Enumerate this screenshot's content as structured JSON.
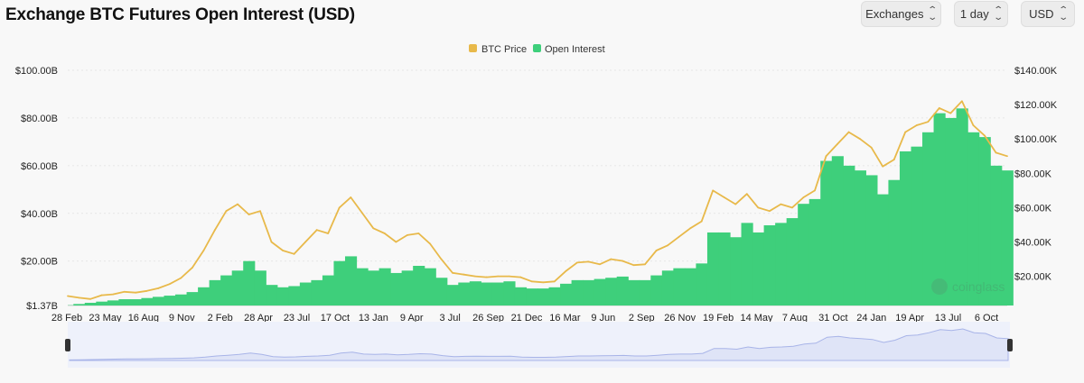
{
  "header": {
    "title": "Exchange BTC Futures Open Interest (USD)",
    "controls": [
      {
        "label": "Exchanges"
      },
      {
        "label": "1 day"
      },
      {
        "label": "USD"
      }
    ]
  },
  "watermark": "coinglass",
  "colors": {
    "price": "#e8b94a",
    "oi": "#3ecf7b",
    "navigator_fill": "#dfe4f7",
    "navigator_line": "#a8b4e8"
  },
  "chart_data": {
    "type": "area",
    "legend": [
      {
        "name": "BTC Price",
        "color": "#e8b94a"
      },
      {
        "name": "Open Interest",
        "color": "#3ecf7b"
      }
    ],
    "y_left": {
      "ticks": [
        "$1.37B",
        "$20.00B",
        "$40.00B",
        "$60.00B",
        "$80.00B",
        "$100.00B"
      ],
      "values": [
        1.37,
        20,
        40,
        60,
        80,
        100
      ],
      "range": [
        1.37,
        100
      ]
    },
    "y_right": {
      "ticks": [
        "$20.00K",
        "$40.00K",
        "$60.00K",
        "$80.00K",
        "$100.00K",
        "$120.00K",
        "$140.00K"
      ],
      "values": [
        20000,
        40000,
        60000,
        80000,
        100000,
        120000,
        140000
      ],
      "range": [
        3000,
        140000
      ]
    },
    "x_ticks": [
      "28 Feb",
      "23 May",
      "16 Aug",
      "9 Nov",
      "2 Feb",
      "28 Apr",
      "23 Jul",
      "17 Oct",
      "13 Jan",
      "9 Apr",
      "3 Jul",
      "26 Sep",
      "21 Dec",
      "16 Mar",
      "9 Jun",
      "2 Sep",
      "26 Nov",
      "19 Feb",
      "14 May",
      "7 Aug",
      "31 Oct",
      "24 Jan",
      "19 Apr",
      "13 Jul",
      "6 Oct"
    ],
    "series": [
      {
        "name": "BTC Price",
        "unit": "USD",
        "points": [
          [
            0,
            8500
          ],
          [
            1,
            7500
          ],
          [
            2,
            6800
          ],
          [
            3,
            9000
          ],
          [
            4,
            9500
          ],
          [
            5,
            11000
          ],
          [
            6,
            10500
          ],
          [
            7,
            11500
          ],
          [
            8,
            13000
          ],
          [
            9,
            15500
          ],
          [
            10,
            19000
          ],
          [
            11,
            25000
          ],
          [
            12,
            35000
          ],
          [
            13,
            47000
          ],
          [
            14,
            58000
          ],
          [
            15,
            62000
          ],
          [
            16,
            56000
          ],
          [
            17,
            58000
          ],
          [
            18,
            40000
          ],
          [
            19,
            35000
          ],
          [
            20,
            33000
          ],
          [
            21,
            40000
          ],
          [
            22,
            47000
          ],
          [
            23,
            45000
          ],
          [
            24,
            60000
          ],
          [
            25,
            66000
          ],
          [
            26,
            57000
          ],
          [
            27,
            48000
          ],
          [
            28,
            45000
          ],
          [
            29,
            40000
          ],
          [
            30,
            44000
          ],
          [
            31,
            45000
          ],
          [
            32,
            39000
          ],
          [
            33,
            30000
          ],
          [
            34,
            22000
          ],
          [
            35,
            21000
          ],
          [
            36,
            20000
          ],
          [
            37,
            19500
          ],
          [
            38,
            20000
          ],
          [
            39,
            20000
          ],
          [
            40,
            19500
          ],
          [
            41,
            17000
          ],
          [
            42,
            16500
          ],
          [
            43,
            17000
          ],
          [
            44,
            23000
          ],
          [
            45,
            28000
          ],
          [
            46,
            28500
          ],
          [
            47,
            27000
          ],
          [
            48,
            30000
          ],
          [
            49,
            29000
          ],
          [
            50,
            26500
          ],
          [
            51,
            27000
          ],
          [
            52,
            35000
          ],
          [
            53,
            38000
          ],
          [
            54,
            43000
          ],
          [
            55,
            48000
          ],
          [
            56,
            52000
          ],
          [
            57,
            70000
          ],
          [
            58,
            66000
          ],
          [
            59,
            62000
          ],
          [
            60,
            68000
          ],
          [
            61,
            60000
          ],
          [
            62,
            58000
          ],
          [
            63,
            62000
          ],
          [
            64,
            60000
          ],
          [
            65,
            66000
          ],
          [
            66,
            70000
          ],
          [
            67,
            90000
          ],
          [
            68,
            97000
          ],
          [
            69,
            104000
          ],
          [
            70,
            100000
          ],
          [
            71,
            95000
          ],
          [
            72,
            84000
          ],
          [
            73,
            88000
          ],
          [
            74,
            104000
          ],
          [
            75,
            108000
          ],
          [
            76,
            110000
          ],
          [
            77,
            118000
          ],
          [
            78,
            115000
          ],
          [
            79,
            122000
          ],
          [
            80,
            108000
          ],
          [
            81,
            102000
          ],
          [
            82,
            92000
          ],
          [
            83,
            90000
          ]
        ]
      },
      {
        "name": "Open Interest",
        "unit": "USD billions",
        "points": [
          [
            0,
            1.5
          ],
          [
            1,
            2
          ],
          [
            2,
            2.5
          ],
          [
            3,
            3
          ],
          [
            4,
            3.5
          ],
          [
            5,
            4
          ],
          [
            6,
            4
          ],
          [
            7,
            4.5
          ],
          [
            8,
            5
          ],
          [
            9,
            5.5
          ],
          [
            10,
            6
          ],
          [
            11,
            7
          ],
          [
            12,
            9
          ],
          [
            13,
            12
          ],
          [
            14,
            14
          ],
          [
            15,
            16
          ],
          [
            16,
            20
          ],
          [
            17,
            16
          ],
          [
            18,
            10
          ],
          [
            19,
            9
          ],
          [
            20,
            9.5
          ],
          [
            21,
            11
          ],
          [
            22,
            12
          ],
          [
            23,
            14
          ],
          [
            24,
            20
          ],
          [
            25,
            22
          ],
          [
            26,
            17
          ],
          [
            27,
            16
          ],
          [
            28,
            17
          ],
          [
            29,
            15
          ],
          [
            30,
            16
          ],
          [
            31,
            18
          ],
          [
            32,
            17
          ],
          [
            33,
            13
          ],
          [
            34,
            10
          ],
          [
            35,
            11
          ],
          [
            36,
            11.5
          ],
          [
            37,
            11
          ],
          [
            38,
            11
          ],
          [
            39,
            11.5
          ],
          [
            40,
            9
          ],
          [
            41,
            8.5
          ],
          [
            42,
            8.5
          ],
          [
            43,
            9
          ],
          [
            44,
            10.5
          ],
          [
            45,
            12
          ],
          [
            46,
            12
          ],
          [
            47,
            12.5
          ],
          [
            48,
            13
          ],
          [
            49,
            13.5
          ],
          [
            50,
            12
          ],
          [
            51,
            12
          ],
          [
            52,
            14
          ],
          [
            53,
            16
          ],
          [
            54,
            17
          ],
          [
            55,
            17
          ],
          [
            56,
            19
          ],
          [
            57,
            32
          ],
          [
            58,
            32
          ],
          [
            59,
            30
          ],
          [
            60,
            36
          ],
          [
            61,
            32
          ],
          [
            62,
            35
          ],
          [
            63,
            36
          ],
          [
            64,
            38
          ],
          [
            65,
            44
          ],
          [
            66,
            46
          ],
          [
            67,
            62
          ],
          [
            68,
            64
          ],
          [
            69,
            60
          ],
          [
            70,
            58
          ],
          [
            71,
            56
          ],
          [
            72,
            48
          ],
          [
            73,
            54
          ],
          [
            74,
            66
          ],
          [
            75,
            68
          ],
          [
            76,
            74
          ],
          [
            77,
            82
          ],
          [
            78,
            80
          ],
          [
            79,
            84
          ],
          [
            80,
            74
          ],
          [
            81,
            72
          ],
          [
            82,
            60
          ],
          [
            83,
            58
          ]
        ]
      }
    ]
  }
}
